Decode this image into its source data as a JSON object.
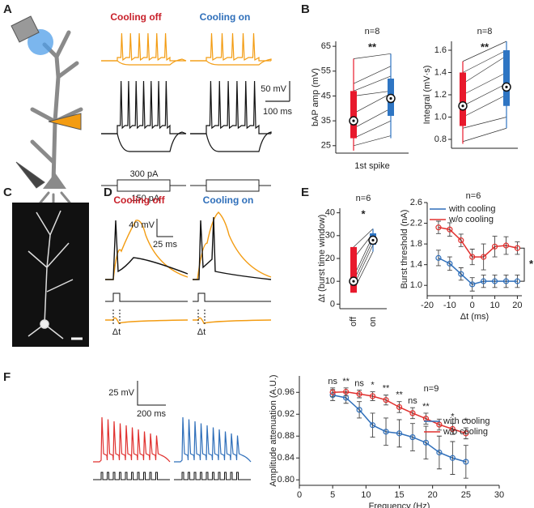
{
  "panel_labels": [
    "A",
    "B",
    "C",
    "D",
    "E",
    "F"
  ],
  "panel_a": {
    "titles": [
      "Cooling off",
      "Cooling on"
    ],
    "scale_v": "50 mV",
    "scale_t": "100 ms",
    "current_pos": "300 pA",
    "current_neg": "-150 pA"
  },
  "panel_d": {
    "titles": [
      "Cooling off",
      "Cooling on"
    ],
    "scale_v": "40 mV",
    "scale_t": "25 ms",
    "delta": [
      "Δt",
      "Δt"
    ]
  },
  "panel_f": {
    "scale_v": "25 mV",
    "scale_t": "200 ms"
  },
  "chart_data": [
    {
      "type": "box",
      "ylabel": "bAP amp (mV)",
      "n_label": "n=8",
      "significance": "**",
      "xlabel": "1st spike",
      "ylim": [
        22,
        67
      ],
      "yticks": [
        25,
        35,
        45,
        55,
        65
      ],
      "series": [
        {
          "color": "#e8192c",
          "whisker": [
            23,
            60
          ],
          "box": [
            28,
            47
          ],
          "mean": 35
        },
        {
          "color": "#2e75c3",
          "whisker": [
            28,
            62
          ],
          "box": [
            37,
            52
          ],
          "mean": 44
        }
      ],
      "pairs": [
        [
          60,
          62
        ],
        [
          50,
          57
        ],
        [
          47,
          53
        ],
        [
          45,
          47
        ],
        [
          38,
          46
        ],
        [
          32,
          40
        ],
        [
          28,
          35
        ],
        [
          25,
          29
        ]
      ]
    },
    {
      "type": "box",
      "ylabel": "Integral (mV·s)",
      "n_label": "n=8",
      "significance": "**",
      "ylim": [
        0.72,
        1.68
      ],
      "yticks": [
        0.8,
        {
          "value": 1.0,
          "label": "1.0"
        },
        1.2,
        1.4,
        1.6
      ],
      "series": [
        {
          "color": "#e8192c",
          "whisker": [
            0.76,
            1.5
          ],
          "box": [
            0.92,
            1.4
          ],
          "mean": 1.1
        },
        {
          "color": "#2e75c3",
          "whisker": [
            0.9,
            1.68
          ],
          "box": [
            1.1,
            1.6
          ],
          "mean": 1.27
        }
      ],
      "pairs": [
        [
          1.5,
          1.68
        ],
        [
          1.4,
          1.6
        ],
        [
          1.3,
          1.55
        ],
        [
          1.2,
          1.4
        ],
        [
          1.1,
          1.3
        ],
        [
          1.0,
          1.2
        ],
        [
          0.9,
          1.0
        ],
        [
          0.78,
          0.9
        ]
      ]
    },
    {
      "type": "box",
      "ylabel": "Δt (burst time window)",
      "n_label": "n=6",
      "significance": "*",
      "categories": [
        "off",
        "on"
      ],
      "ylim": [
        -2,
        42
      ],
      "yticks": [
        0,
        10,
        20,
        30,
        40
      ],
      "series": [
        {
          "color": "#e8192c",
          "whisker": [
            5,
            25
          ],
          "box": [
            5,
            25
          ],
          "mean": 10
        },
        {
          "color": "#2e75c3",
          "whisker": [
            23,
            33
          ],
          "box": [
            26,
            31
          ],
          "mean": 28
        }
      ],
      "pairs": [
        [
          25,
          33
        ],
        [
          20,
          31
        ],
        [
          12,
          30
        ],
        [
          10,
          28
        ],
        [
          8,
          26
        ],
        [
          6,
          23
        ]
      ]
    },
    {
      "type": "line",
      "ylabel": "Burst threshold (nA)",
      "xlabel": "Δt (ms)",
      "n_label": "n=6",
      "significance": "*",
      "xlim": [
        -20,
        22
      ],
      "xticks": [
        -20,
        -10,
        0,
        10,
        20
      ],
      "ylim": [
        0.8,
        2.6
      ],
      "yticks": [
        {
          "value": 1.0,
          "label": "1.0"
        },
        1.4,
        1.8,
        2.2,
        2.6
      ],
      "x": [
        -15,
        -10,
        -5,
        0,
        5,
        10,
        15,
        20
      ],
      "series": [
        {
          "name": "with cooling",
          "color": "#2f6fba",
          "values": [
            1.53,
            1.42,
            1.22,
            1.02,
            1.08,
            1.08,
            1.08,
            1.08
          ],
          "errors": [
            0.15,
            0.13,
            0.12,
            0.13,
            0.12,
            0.12,
            0.12,
            0.12
          ]
        },
        {
          "name": "w/o cooling",
          "color": "#e0302e",
          "values": [
            2.12,
            2.08,
            1.87,
            1.55,
            1.55,
            1.75,
            1.77,
            1.72
          ],
          "errors": [
            0.12,
            0.13,
            0.12,
            0.15,
            0.25,
            0.2,
            0.17,
            0.12
          ]
        }
      ]
    },
    {
      "type": "line",
      "ylabel": "Amplitude attenuation (A.U.)",
      "xlabel": "Frequency (Hz)",
      "n_label": "n=9",
      "xlim": [
        0,
        30
      ],
      "xticks": [
        0,
        5,
        10,
        15,
        20,
        25,
        30
      ],
      "ylim": [
        0.79,
        0.99
      ],
      "yticks": [
        {
          "value": 0.8,
          "label": "0.80"
        },
        0.84,
        0.88,
        0.92,
        0.96
      ],
      "x": [
        5,
        7,
        9,
        11,
        13,
        15,
        17,
        19,
        21,
        23,
        25
      ],
      "series": [
        {
          "name": "with cooling",
          "color": "#2f6fba",
          "values": [
            0.955,
            0.95,
            0.928,
            0.9,
            0.888,
            0.885,
            0.878,
            0.868,
            0.85,
            0.84,
            0.833
          ],
          "errors": [
            0.01,
            0.01,
            0.015,
            0.022,
            0.025,
            0.025,
            0.025,
            0.03,
            0.03,
            0.03,
            0.03
          ]
        },
        {
          "name": "w/o cooling",
          "color": "#e0302e",
          "values": [
            0.96,
            0.961,
            0.957,
            0.953,
            0.946,
            0.933,
            0.922,
            0.912,
            0.901,
            0.893,
            0.885
          ],
          "errors": [
            0.008,
            0.007,
            0.007,
            0.008,
            0.009,
            0.01,
            0.01,
            0.01,
            0.01,
            0.01,
            0.01
          ]
        }
      ],
      "annotations": [
        {
          "text": "ns",
          "x": 5
        },
        {
          "text": "**",
          "x": 7
        },
        {
          "text": "ns",
          "x": 9
        },
        {
          "text": "*",
          "x": 11
        },
        {
          "text": "**",
          "x": 13
        },
        {
          "text": "**",
          "x": 15
        },
        {
          "text": "ns",
          "x": 17
        },
        {
          "text": "**",
          "x": 19
        },
        {
          "text": "*",
          "x": 23
        },
        {
          "text": "*",
          "x": 25
        }
      ]
    }
  ]
}
